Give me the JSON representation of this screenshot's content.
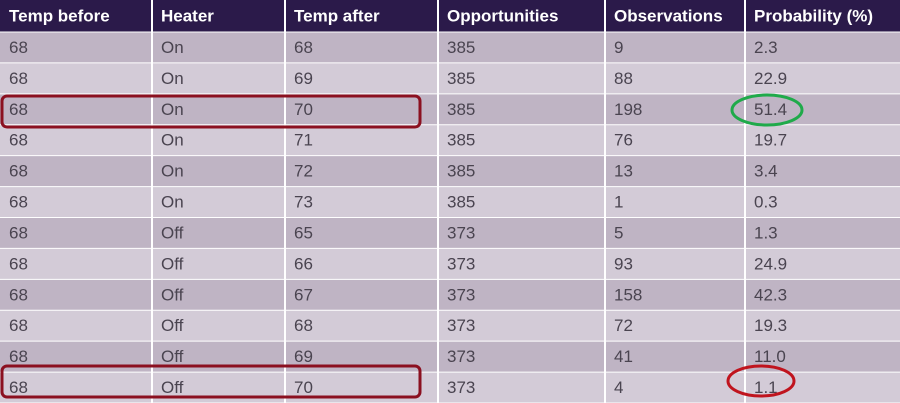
{
  "table": {
    "header": [
      "Temp before",
      "Heater",
      "Temp after",
      "Opportunities",
      "Observations",
      "Probability (%)"
    ],
    "rows": [
      [
        "68",
        "On",
        "68",
        "385",
        "9",
        "2.3"
      ],
      [
        "68",
        "On",
        "69",
        "385",
        "88",
        "22.9"
      ],
      [
        "68",
        "On",
        "70",
        "385",
        "198",
        "51.4"
      ],
      [
        "68",
        "On",
        "71",
        "385",
        "76",
        "19.7"
      ],
      [
        "68",
        "On",
        "72",
        "385",
        "13",
        "3.4"
      ],
      [
        "68",
        "On",
        "73",
        "385",
        "1",
        "0.3"
      ],
      [
        "68",
        "Off",
        "65",
        "373",
        "5",
        "1.3"
      ],
      [
        "68",
        "Off",
        "66",
        "373",
        "93",
        "24.9"
      ],
      [
        "68",
        "Off",
        "67",
        "373",
        "158",
        "42.3"
      ],
      [
        "68",
        "Off",
        "68",
        "373",
        "72",
        "19.3"
      ],
      [
        "68",
        "Off",
        "69",
        "373",
        "41",
        "11.0"
      ],
      [
        "68",
        "Off",
        "70",
        "373",
        "4",
        "1.1"
      ]
    ]
  }
}
